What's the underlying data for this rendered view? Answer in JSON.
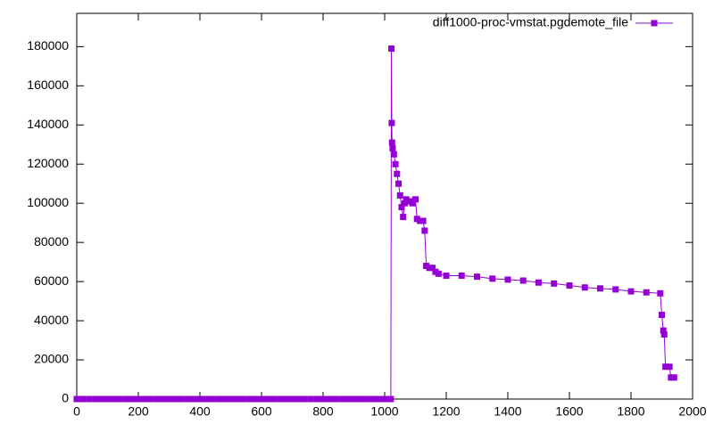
{
  "chart_data": {
    "type": "line",
    "x": [
      0,
      20,
      40,
      60,
      80,
      100,
      120,
      140,
      160,
      180,
      200,
      220,
      240,
      260,
      280,
      300,
      320,
      340,
      360,
      380,
      400,
      420,
      440,
      460,
      480,
      500,
      520,
      540,
      560,
      580,
      600,
      620,
      640,
      660,
      680,
      700,
      720,
      740,
      760,
      780,
      800,
      820,
      840,
      860,
      880,
      900,
      920,
      940,
      960,
      980,
      1000,
      1020,
      1022,
      1023,
      1024,
      1026,
      1030,
      1035,
      1040,
      1045,
      1050,
      1055,
      1060,
      1065,
      1070,
      1080,
      1090,
      1100,
      1105,
      1115,
      1125,
      1130,
      1135,
      1145,
      1155,
      1165,
      1175,
      1200,
      1250,
      1300,
      1350,
      1400,
      1450,
      1500,
      1550,
      1600,
      1650,
      1700,
      1750,
      1800,
      1850,
      1895,
      1900,
      1905,
      1908,
      1912,
      1925,
      1930,
      1940
    ],
    "series": [
      {
        "name": "diff1000-proc-vmstat.pgdemote_file",
        "color": "#9400d3",
        "values": [
          0,
          0,
          0,
          0,
          0,
          0,
          0,
          0,
          0,
          0,
          0,
          0,
          0,
          0,
          0,
          0,
          0,
          0,
          0,
          0,
          0,
          0,
          0,
          0,
          0,
          0,
          0,
          0,
          0,
          0,
          0,
          0,
          0,
          0,
          0,
          0,
          0,
          0,
          0,
          0,
          0,
          0,
          0,
          0,
          0,
          0,
          0,
          0,
          0,
          0,
          0,
          0,
          179000,
          141000,
          131000,
          128000,
          125000,
          120000,
          115000,
          110000,
          104000,
          98000,
          93000,
          100000,
          102000,
          101000,
          100000,
          102000,
          92000,
          91000,
          91000,
          86000,
          68000,
          67000,
          67000,
          65000,
          64000,
          63000,
          63000,
          62500,
          61500,
          61000,
          60500,
          59500,
          59000,
          58000,
          57000,
          56500,
          56000,
          55000,
          54500,
          54000,
          43000,
          35000,
          33000,
          16500,
          16500,
          11000,
          11000
        ]
      }
    ],
    "xlim": [
      0,
      2000
    ],
    "xticks": [
      0,
      200,
      400,
      600,
      800,
      1000,
      1200,
      1400,
      1600,
      1800,
      2000
    ],
    "ylim": [
      0,
      197000
    ],
    "yticks": [
      0,
      20000,
      40000,
      60000,
      80000,
      100000,
      120000,
      140000,
      160000,
      180000
    ],
    "legend": "top-right",
    "marker": "square"
  }
}
